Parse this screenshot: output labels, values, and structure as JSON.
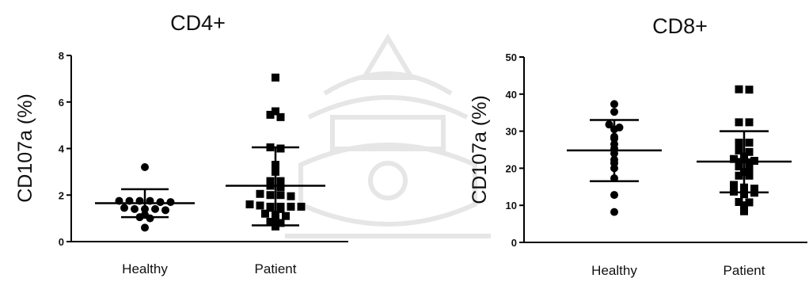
{
  "chart_data": [
    {
      "id": "cd4",
      "type": "scatter",
      "title": "CD4+",
      "ylabel": "CD107a (%)",
      "xlabel": "",
      "ylim": [
        0,
        8
      ],
      "yticks": [
        "0",
        "2",
        "4",
        "6",
        "8"
      ],
      "grid": false,
      "categories": [
        "Healthy",
        "Patient"
      ],
      "groups": [
        {
          "category": "Healthy",
          "marker": "circle",
          "mean": 1.65,
          "sd_low": 1.05,
          "sd_high": 2.25,
          "values": [
            3.2,
            1.75,
            1.75,
            1.75,
            1.7,
            1.7,
            1.75,
            1.4,
            1.35,
            1.4,
            1.45,
            1.4,
            1.05,
            1.0,
            1.15,
            0.6
          ]
        },
        {
          "category": "Patient",
          "marker": "square",
          "mean": 2.4,
          "sd_low": 0.7,
          "sd_high": 4.05,
          "values": [
            7.05,
            5.6,
            5.35,
            5.45,
            4.05,
            4.0,
            3.3,
            3.0,
            2.6,
            2.6,
            2.35,
            2.4,
            2.0,
            2.0,
            2.05,
            1.95,
            1.6,
            1.45,
            1.5,
            1.55,
            1.4,
            1.5,
            1.5,
            1.5,
            1.2,
            1.1,
            1.15,
            0.9,
            0.85,
            0.8,
            0.65
          ]
        }
      ]
    },
    {
      "id": "cd8",
      "type": "scatter",
      "title": "CD8+",
      "ylabel": "CD107a (%)",
      "xlabel": "",
      "ylim": [
        0,
        50
      ],
      "yticks": [
        "0",
        "10",
        "20",
        "30",
        "40",
        "50"
      ],
      "grid": false,
      "categories": [
        "Healthy",
        "Patient"
      ],
      "groups": [
        {
          "category": "Healthy",
          "marker": "circle",
          "mean": 24.8,
          "sd_low": 16.5,
          "sd_high": 33.0,
          "values": [
            37.3,
            35.2,
            31.8,
            31.0,
            30.5,
            28.5,
            28.0,
            26.5,
            25.3,
            24.0,
            22.3,
            21.4,
            20.0,
            17.3,
            12.8,
            8.2
          ]
        },
        {
          "category": "Patient",
          "marker": "square",
          "mean": 21.8,
          "sd_low": 13.5,
          "sd_high": 30.0,
          "values": [
            41.3,
            41.2,
            32.4,
            32.4,
            26.9,
            26.9,
            24.8,
            24.4,
            23.2,
            22.5,
            22.4,
            22.0,
            21.7,
            21.6,
            20.5,
            19.9,
            19.0,
            18.0,
            18.0,
            15.5,
            14.8,
            14.5,
            13.7,
            13.4,
            13.5,
            13.0,
            10.8,
            10.9,
            10.0,
            8.4
          ]
        }
      ]
    }
  ]
}
